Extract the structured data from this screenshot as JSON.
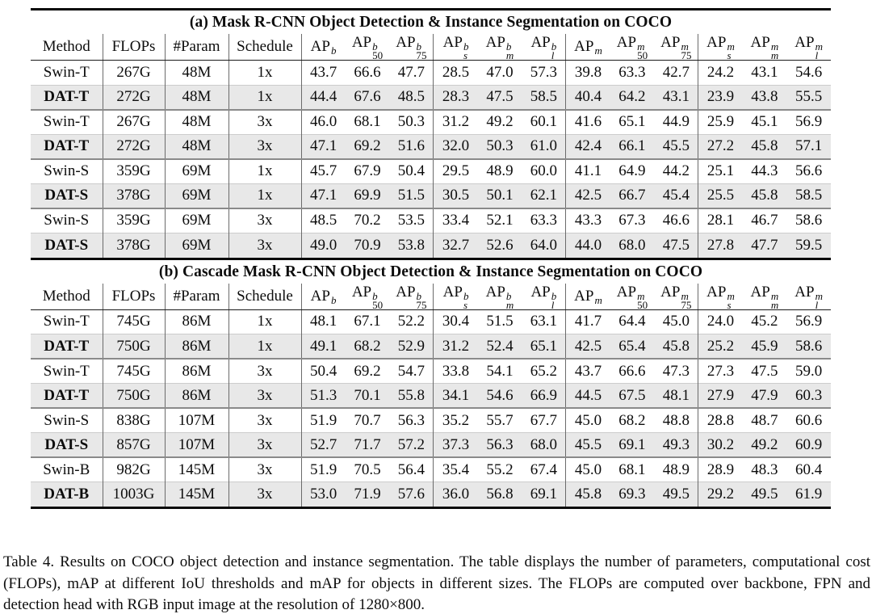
{
  "colors": {
    "row_shading": "#e8e8e8",
    "rule_heavy": "#0a0a0a",
    "rule_vertical": "#6b6b6b",
    "rule_pair": "#8a8a8a",
    "text": "#0d0d0d"
  },
  "tables": [
    {
      "title": "(a) Mask R-CNN Object Detection & Instance Segmentation on COCO",
      "header": [
        {
          "text": "Method"
        },
        {
          "text": "FLOPs"
        },
        {
          "text": "#Param"
        },
        {
          "text": "Schedule"
        },
        {
          "base": "AP",
          "sup": "b",
          "sub": ""
        },
        {
          "base": "AP",
          "sup": "b",
          "sub": "50"
        },
        {
          "base": "AP",
          "sup": "b",
          "sub": "75"
        },
        {
          "base": "AP",
          "sup": "b",
          "sub": "s"
        },
        {
          "base": "AP",
          "sup": "b",
          "sub": "m"
        },
        {
          "base": "AP",
          "sup": "b",
          "sub": "l"
        },
        {
          "base": "AP",
          "sup": "m",
          "sub": ""
        },
        {
          "base": "AP",
          "sup": "m",
          "sub": "50"
        },
        {
          "base": "AP",
          "sup": "m",
          "sub": "75"
        },
        {
          "base": "AP",
          "sup": "m",
          "sub": "s"
        },
        {
          "base": "AP",
          "sup": "m",
          "sub": "m"
        },
        {
          "base": "AP",
          "sup": "m",
          "sub": "l"
        }
      ],
      "rows": [
        {
          "bold": false,
          "shaded": false,
          "cells": [
            "Swin-T",
            "267G",
            "48M",
            "1x",
            "43.7",
            "66.6",
            "47.7",
            "28.5",
            "47.0",
            "57.3",
            "39.8",
            "63.3",
            "42.7",
            "24.2",
            "43.1",
            "54.6"
          ]
        },
        {
          "bold": true,
          "shaded": true,
          "cells": [
            "DAT-T",
            "272G",
            "48M",
            "1x",
            "44.4",
            "67.6",
            "48.5",
            "28.3",
            "47.5",
            "58.5",
            "40.4",
            "64.2",
            "43.1",
            "23.9",
            "43.8",
            "55.5"
          ]
        },
        {
          "bold": false,
          "shaded": false,
          "cells": [
            "Swin-T",
            "267G",
            "48M",
            "3x",
            "46.0",
            "68.1",
            "50.3",
            "31.2",
            "49.2",
            "60.1",
            "41.6",
            "65.1",
            "44.9",
            "25.9",
            "45.1",
            "56.9"
          ]
        },
        {
          "bold": true,
          "shaded": true,
          "cells": [
            "DAT-T",
            "272G",
            "48M",
            "3x",
            "47.1",
            "69.2",
            "51.6",
            "32.0",
            "50.3",
            "61.0",
            "42.4",
            "66.1",
            "45.5",
            "27.2",
            "45.8",
            "57.1"
          ]
        },
        {
          "bold": false,
          "shaded": false,
          "cells": [
            "Swin-S",
            "359G",
            "69M",
            "1x",
            "45.7",
            "67.9",
            "50.4",
            "29.5",
            "48.9",
            "60.0",
            "41.1",
            "64.9",
            "44.2",
            "25.1",
            "44.3",
            "56.6"
          ]
        },
        {
          "bold": true,
          "shaded": true,
          "cells": [
            "DAT-S",
            "378G",
            "69M",
            "1x",
            "47.1",
            "69.9",
            "51.5",
            "30.5",
            "50.1",
            "62.1",
            "42.5",
            "66.7",
            "45.4",
            "25.5",
            "45.8",
            "58.5"
          ]
        },
        {
          "bold": false,
          "shaded": false,
          "cells": [
            "Swin-S",
            "359G",
            "69M",
            "3x",
            "48.5",
            "70.2",
            "53.5",
            "33.4",
            "52.1",
            "63.3",
            "43.3",
            "67.3",
            "46.6",
            "28.1",
            "46.7",
            "58.6"
          ]
        },
        {
          "bold": true,
          "shaded": true,
          "cells": [
            "DAT-S",
            "378G",
            "69M",
            "3x",
            "49.0",
            "70.9",
            "53.8",
            "32.7",
            "52.6",
            "64.0",
            "44.0",
            "68.0",
            "47.5",
            "27.8",
            "47.7",
            "59.5"
          ]
        }
      ]
    },
    {
      "title": "(b) Cascade Mask R-CNN Object Detection & Instance Segmentation on COCO",
      "header": [
        {
          "text": "Method"
        },
        {
          "text": "FLOPs"
        },
        {
          "text": "#Param"
        },
        {
          "text": "Schedule"
        },
        {
          "base": "AP",
          "sup": "b",
          "sub": ""
        },
        {
          "base": "AP",
          "sup": "b",
          "sub": "50"
        },
        {
          "base": "AP",
          "sup": "b",
          "sub": "75"
        },
        {
          "base": "AP",
          "sup": "b",
          "sub": "s"
        },
        {
          "base": "AP",
          "sup": "b",
          "sub": "m"
        },
        {
          "base": "AP",
          "sup": "b",
          "sub": "l"
        },
        {
          "base": "AP",
          "sup": "m",
          "sub": ""
        },
        {
          "base": "AP",
          "sup": "m",
          "sub": "50"
        },
        {
          "base": "AP",
          "sup": "m",
          "sub": "75"
        },
        {
          "base": "AP",
          "sup": "m",
          "sub": "s"
        },
        {
          "base": "AP",
          "sup": "m",
          "sub": "m"
        },
        {
          "base": "AP",
          "sup": "m",
          "sub": "l"
        }
      ],
      "rows": [
        {
          "bold": false,
          "shaded": false,
          "cells": [
            "Swin-T",
            "745G",
            "86M",
            "1x",
            "48.1",
            "67.1",
            "52.2",
            "30.4",
            "51.5",
            "63.1",
            "41.7",
            "64.4",
            "45.0",
            "24.0",
            "45.2",
            "56.9"
          ]
        },
        {
          "bold": true,
          "shaded": true,
          "cells": [
            "DAT-T",
            "750G",
            "86M",
            "1x",
            "49.1",
            "68.2",
            "52.9",
            "31.2",
            "52.4",
            "65.1",
            "42.5",
            "65.4",
            "45.8",
            "25.2",
            "45.9",
            "58.6"
          ]
        },
        {
          "bold": false,
          "shaded": false,
          "cells": [
            "Swin-T",
            "745G",
            "86M",
            "3x",
            "50.4",
            "69.2",
            "54.7",
            "33.8",
            "54.1",
            "65.2",
            "43.7",
            "66.6",
            "47.3",
            "27.3",
            "47.5",
            "59.0"
          ]
        },
        {
          "bold": true,
          "shaded": true,
          "cells": [
            "DAT-T",
            "750G",
            "86M",
            "3x",
            "51.3",
            "70.1",
            "55.8",
            "34.1",
            "54.6",
            "66.9",
            "44.5",
            "67.5",
            "48.1",
            "27.9",
            "47.9",
            "60.3"
          ]
        },
        {
          "bold": false,
          "shaded": false,
          "cells": [
            "Swin-S",
            "838G",
            "107M",
            "3x",
            "51.9",
            "70.7",
            "56.3",
            "35.2",
            "55.7",
            "67.7",
            "45.0",
            "68.2",
            "48.8",
            "28.8",
            "48.7",
            "60.6"
          ]
        },
        {
          "bold": true,
          "shaded": true,
          "cells": [
            "DAT-S",
            "857G",
            "107M",
            "3x",
            "52.7",
            "71.7",
            "57.2",
            "37.3",
            "56.3",
            "68.0",
            "45.5",
            "69.1",
            "49.3",
            "30.2",
            "49.2",
            "60.9"
          ]
        },
        {
          "bold": false,
          "shaded": false,
          "cells": [
            "Swin-B",
            "982G",
            "145M",
            "3x",
            "51.9",
            "70.5",
            "56.4",
            "35.4",
            "55.2",
            "67.4",
            "45.0",
            "68.1",
            "48.9",
            "28.9",
            "48.3",
            "60.4"
          ]
        },
        {
          "bold": true,
          "shaded": true,
          "cells": [
            "DAT-B",
            "1003G",
            "145M",
            "3x",
            "53.0",
            "71.9",
            "57.6",
            "36.0",
            "56.8",
            "69.1",
            "45.8",
            "69.3",
            "49.5",
            "29.2",
            "49.5",
            "61.9"
          ]
        }
      ]
    }
  ],
  "caption": "Table 4. Results on COCO object detection and instance segmentation. The table displays the number of parameters, computational cost (FLOPs), mAP at different IoU thresholds and mAP for objects in different sizes. The FLOPs are computed over backbone, FPN and detection head with RGB input image at the resolution of 1280×800."
}
